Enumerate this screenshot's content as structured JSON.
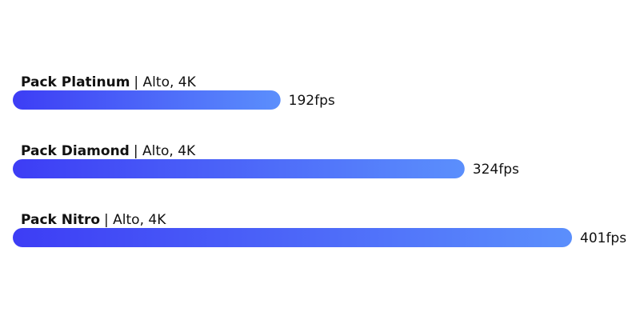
{
  "chart_data": {
    "type": "bar",
    "categories": [
      "Pack Platinum",
      "Pack Diamond",
      "Pack Nitro"
    ],
    "details": [
      "| Alto, 4K",
      "| Alto, 4K",
      "| Alto, 4K"
    ],
    "values": [
      192,
      324,
      401
    ],
    "value_labels": [
      "192fps",
      "324fps",
      "401fps"
    ],
    "color_start": "#3d3df5",
    "color_end": "#5b8ffc"
  }
}
